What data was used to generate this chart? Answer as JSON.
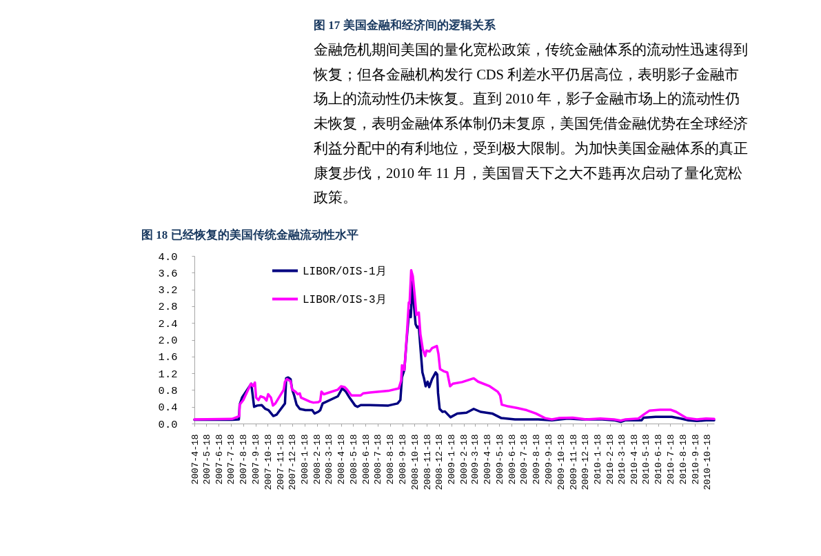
{
  "chart_data": {
    "type": "line",
    "title": "图 18 已经恢复的美国传统金融流动性水平",
    "annotations": [
      "图 17 美国金融和经济间的逻辑关系",
      "金融危机期间美国的量化宽松政策，传统金融体系的流动性迅速得到",
      "恢复；但各金融机构发行 CDS 利差水平仍居高位，表明影子金融市",
      "场上的流动性仍未恢复。直到 2010 年，影子金融市场上的流动性仍",
      "未恢复，表明金融体系体制仍未复原，美国凭借金融优势在全球经济",
      "利益分配中的有利地位，受到极大限制。为加快美国金融体系的真正",
      "康复步伐，2010 年 11 月，美国冒天下之大不韪再次启动了量化宽松",
      "政策。"
    ],
    "series": [
      {
        "name": "LIBOR/OIS-1月",
        "color": "#000080",
        "x": [
          "2007-04-18",
          "2007-07-21",
          "2007-08-07",
          "2007-08-09",
          "2007-08-15",
          "2007-09-07",
          "2007-09-14",
          "2007-09-22",
          "2007-10-03",
          "2007-10-12",
          "2007-10-20",
          "2007-11-01",
          "2007-11-09",
          "2007-11-30",
          "2007-12-03",
          "2007-12-08",
          "2007-12-14",
          "2007-12-18",
          "2007-12-23",
          "2007-12-29",
          "2008-01-06",
          "2008-01-20",
          "2008-02-06",
          "2008-02-12",
          "2008-02-21",
          "2008-02-26",
          "2008-03-03",
          "2008-04-10",
          "2008-04-21",
          "2008-04-30",
          "2008-05-09",
          "2008-05-23",
          "2008-05-29",
          "2008-06-06",
          "2008-06-29",
          "2008-08-14",
          "2008-09-06",
          "2008-09-13",
          "2008-09-17",
          "2008-09-23",
          "2008-09-29",
          "2008-10-05",
          "2008-10-09",
          "2008-10-13",
          "2008-10-17",
          "2008-10-21",
          "2008-10-25",
          "2008-10-29",
          "2008-11-02",
          "2008-11-07",
          "2008-11-11",
          "2008-11-15",
          "2008-11-20",
          "2008-11-24",
          "2008-12-01",
          "2008-12-10",
          "2008-12-14",
          "2008-12-16",
          "2008-12-20",
          "2008-12-27",
          "2009-01-02",
          "2009-01-16",
          "2009-02-02",
          "2009-02-25",
          "2009-03-15",
          "2009-04-01",
          "2009-04-30",
          "2009-05-23",
          "2009-06-26",
          "2009-08-23",
          "2009-09-26",
          "2009-11-05",
          "2009-12-10",
          "2010-01-30",
          "2010-02-28",
          "2010-03-17",
          "2010-03-29",
          "2010-05-08",
          "2010-05-13",
          "2010-06-12",
          "2010-07-22",
          "2010-08-14",
          "2010-08-31",
          "2010-09-23",
          "2010-10-16",
          "2010-11-05"
        ],
        "values": [
          0.09,
          0.09,
          0.1,
          0.45,
          0.62,
          0.95,
          0.4,
          0.43,
          0.44,
          0.35,
          0.32,
          0.18,
          0.21,
          0.48,
          1.08,
          1.1,
          1.06,
          0.81,
          0.67,
          0.45,
          0.35,
          0.32,
          0.32,
          0.24,
          0.28,
          0.32,
          0.48,
          0.65,
          0.84,
          0.76,
          0.62,
          0.43,
          0.4,
          0.44,
          0.44,
          0.43,
          0.48,
          0.56,
          1.11,
          1.28,
          2.04,
          2.7,
          2.54,
          3.39,
          2.81,
          2.37,
          2.29,
          2.32,
          1.82,
          1.22,
          1.08,
          0.89,
          1.0,
          0.87,
          1.06,
          1.22,
          1.17,
          0.73,
          0.35,
          0.28,
          0.29,
          0.15,
          0.24,
          0.26,
          0.35,
          0.28,
          0.24,
          0.13,
          0.1,
          0.1,
          0.08,
          0.12,
          0.1,
          0.1,
          0.08,
          0.04,
          0.08,
          0.08,
          0.14,
          0.16,
          0.16,
          0.12,
          0.08,
          0.06,
          0.08,
          0.08
        ]
      },
      {
        "name": "LIBOR/OIS-3月",
        "color": "#ff00ff",
        "x": [
          "2007-04-18",
          "2007-07-21",
          "2007-08-01",
          "2007-08-08",
          "2007-08-09",
          "2007-08-18",
          "2007-09-06",
          "2007-09-11",
          "2007-09-16",
          "2007-09-19",
          "2007-09-25",
          "2007-09-30",
          "2007-10-09",
          "2007-10-15",
          "2007-10-19",
          "2007-10-26",
          "2007-10-31",
          "2007-11-06",
          "2007-11-27",
          "2007-11-30",
          "2007-12-05",
          "2007-12-14",
          "2007-12-18",
          "2007-12-26",
          "2008-01-01",
          "2008-01-06",
          "2008-01-09",
          "2008-02-01",
          "2008-02-09",
          "2008-02-21",
          "2008-02-26",
          "2008-02-29",
          "2008-03-06",
          "2008-04-10",
          "2008-04-18",
          "2008-04-27",
          "2008-05-03",
          "2008-05-14",
          "2008-05-23",
          "2008-06-06",
          "2008-06-12",
          "2008-06-29",
          "2008-08-14",
          "2008-09-09",
          "2008-09-15",
          "2008-09-17",
          "2008-09-23",
          "2008-09-29",
          "2008-10-04",
          "2008-10-06",
          "2008-10-10",
          "2008-10-14",
          "2008-10-19",
          "2008-10-23",
          "2008-10-29",
          "2008-11-02",
          "2008-11-08",
          "2008-11-14",
          "2008-11-17",
          "2008-11-25",
          "2008-12-01",
          "2008-12-13",
          "2008-12-17",
          "2008-12-21",
          "2008-12-30",
          "2009-01-08",
          "2009-01-15",
          "2009-01-22",
          "2009-02-14",
          "2009-03-15",
          "2009-03-26",
          "2009-04-24",
          "2009-05-14",
          "2009-05-20",
          "2009-05-24",
          "2009-06-09",
          "2009-07-02",
          "2009-07-25",
          "2009-08-17",
          "2009-09-09",
          "2009-09-26",
          "2009-10-13",
          "2009-11-17",
          "2009-12-21",
          "2010-01-25",
          "2010-02-28",
          "2010-03-17",
          "2010-03-29",
          "2010-04-30",
          "2010-05-14",
          "2010-05-28",
          "2010-06-23",
          "2010-07-19",
          "2010-08-02",
          "2010-08-28",
          "2010-09-23",
          "2010-10-16",
          "2010-11-05"
        ],
        "values": [
          0.1,
          0.11,
          0.15,
          0.18,
          0.45,
          0.56,
          0.95,
          0.89,
          0.98,
          0.62,
          0.56,
          0.65,
          0.62,
          0.55,
          0.7,
          0.62,
          0.43,
          0.48,
          0.81,
          1.0,
          1.06,
          1.01,
          0.81,
          0.76,
          0.7,
          0.72,
          0.62,
          0.52,
          0.5,
          0.51,
          0.54,
          0.76,
          0.7,
          0.81,
          0.89,
          0.87,
          0.81,
          0.67,
          0.67,
          0.67,
          0.72,
          0.74,
          0.78,
          0.84,
          1.03,
          1.39,
          1.28,
          2.1,
          2.89,
          2.87,
          3.66,
          3.52,
          3.03,
          2.59,
          2.65,
          2.13,
          1.77,
          1.61,
          1.74,
          1.72,
          1.8,
          1.85,
          1.66,
          1.3,
          1.25,
          1.22,
          0.89,
          0.95,
          0.99,
          1.08,
          1.0,
          0.89,
          0.76,
          0.67,
          0.45,
          0.41,
          0.37,
          0.32,
          0.24,
          0.13,
          0.1,
          0.13,
          0.14,
          0.1,
          0.12,
          0.1,
          0.07,
          0.1,
          0.12,
          0.22,
          0.31,
          0.33,
          0.33,
          0.28,
          0.13,
          0.1,
          0.12,
          0.11
        ]
      }
    ],
    "xlim": [
      "2007-04-18",
      "2010-11-05"
    ],
    "xticks": [
      {
        "value": "2007-04-18",
        "label": "2007-4-18"
      },
      {
        "value": "2007-05-18",
        "label": "2007-5-18"
      },
      {
        "value": "2007-06-18",
        "label": "2007-6-18"
      },
      {
        "value": "2007-07-18",
        "label": "2007-7-18"
      },
      {
        "value": "2007-08-18",
        "label": "2007-8-18"
      },
      {
        "value": "2007-09-18",
        "label": "2007-9-18"
      },
      {
        "value": "2007-10-18",
        "label": "2007-10-18"
      },
      {
        "value": "2007-11-18",
        "label": "2007-11-18"
      },
      {
        "value": "2007-12-18",
        "label": "2007-12-18"
      },
      {
        "value": "2008-01-18",
        "label": "2008-1-18"
      },
      {
        "value": "2008-02-18",
        "label": "2008-2-18"
      },
      {
        "value": "2008-03-18",
        "label": "2008-3-18"
      },
      {
        "value": "2008-04-18",
        "label": "2008-4-18"
      },
      {
        "value": "2008-05-18",
        "label": "2008-5-18"
      },
      {
        "value": "2008-06-18",
        "label": "2008-6-18"
      },
      {
        "value": "2008-07-18",
        "label": "2008-7-18"
      },
      {
        "value": "2008-08-18",
        "label": "2008-8-18"
      },
      {
        "value": "2008-09-18",
        "label": "2008-9-18"
      },
      {
        "value": "2008-10-18",
        "label": "2008-10-18"
      },
      {
        "value": "2008-11-18",
        "label": "2008-11-18"
      },
      {
        "value": "2008-12-18",
        "label": "2008-12-18"
      },
      {
        "value": "2009-01-18",
        "label": "2009-1-18"
      },
      {
        "value": "2009-02-18",
        "label": "2009-2-18"
      },
      {
        "value": "2009-03-18",
        "label": "2009-3-18"
      },
      {
        "value": "2009-04-18",
        "label": "2009-4-18"
      },
      {
        "value": "2009-05-18",
        "label": "2009-5-18"
      },
      {
        "value": "2009-06-18",
        "label": "2009-6-18"
      },
      {
        "value": "2009-07-18",
        "label": "2009-7-18"
      },
      {
        "value": "2009-08-18",
        "label": "2009-8-18"
      },
      {
        "value": "2009-09-18",
        "label": "2009-9-18"
      },
      {
        "value": "2009-10-18",
        "label": "2009-10-18"
      },
      {
        "value": "2009-11-18",
        "label": "2009-11-18"
      },
      {
        "value": "2009-12-18",
        "label": "2009-12-18"
      },
      {
        "value": "2010-01-18",
        "label": "2010-1-18"
      },
      {
        "value": "2010-02-18",
        "label": "2010-2-18"
      },
      {
        "value": "2010-03-18",
        "label": "2010-3-18"
      },
      {
        "value": "2010-04-18",
        "label": "2010-4-18"
      },
      {
        "value": "2010-05-18",
        "label": "2010-5-18"
      },
      {
        "value": "2010-06-18",
        "label": "2010-6-18"
      },
      {
        "value": "2010-07-18",
        "label": "2010-7-18"
      },
      {
        "value": "2010-08-18",
        "label": "2010-8-18"
      },
      {
        "value": "2010-09-18",
        "label": "2010-9-18"
      },
      {
        "value": "2010-10-18",
        "label": "2010-10-18"
      }
    ],
    "ylim": [
      0,
      4
    ],
    "yticks": [
      {
        "value": 0,
        "label": "0.0"
      },
      0.4,
      0.8,
      1.2,
      1.6,
      {
        "value": 2,
        "label": "2.0"
      },
      2.4,
      2.8,
      3.2,
      3.6,
      {
        "value": 4,
        "label": "4.0"
      }
    ],
    "legend": "top left"
  }
}
